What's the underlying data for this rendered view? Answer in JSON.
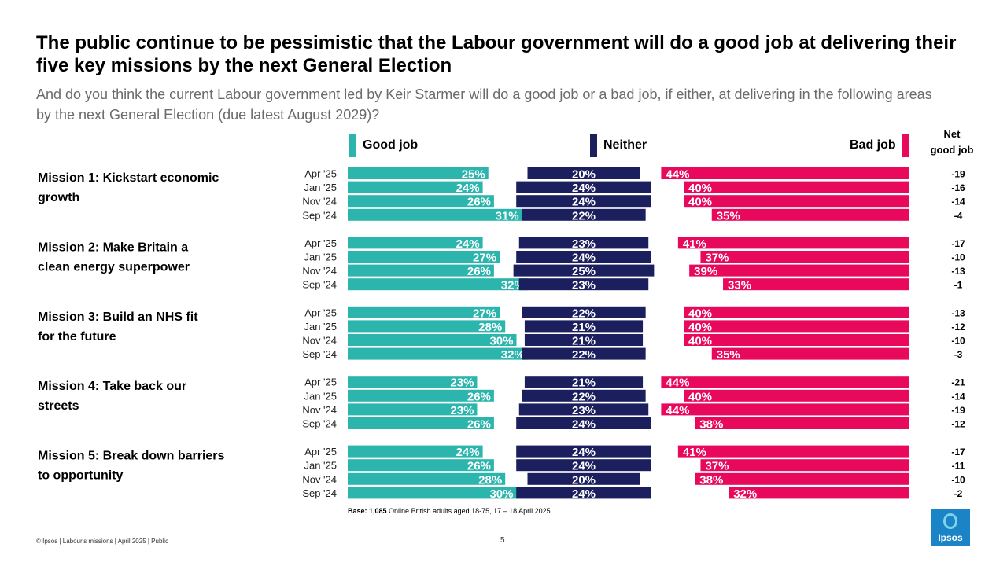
{
  "header": {
    "title": "The public continue to be pessimistic that the Labour government will do a good job at delivering their five key missions by the next General Election",
    "subtitle": "And do you think the current Labour government led by Keir Starmer will do a good job or a bad job, if either, at delivering in the following areas by the next General Election (due latest August 2029)?"
  },
  "legend": {
    "good": "Good job",
    "neither": "Neither",
    "bad": "Bad job",
    "net_line1": "Net",
    "net_line2": "good job"
  },
  "colors": {
    "good": "#2bb5ad",
    "neither": "#1c1f5e",
    "bad": "#e8085c"
  },
  "chart_data": {
    "type": "bar",
    "layout": "diverging-stacked-horizontal",
    "series_names": [
      "Good job",
      "Neither",
      "Bad job"
    ],
    "periods": [
      "Apr '25",
      "Jan '25",
      "Nov '24",
      "Sep '24"
    ],
    "missions": [
      {
        "label": "Mission 1: Kickstart economic growth",
        "rows": [
          {
            "period": "Apr '25",
            "good": 25,
            "neither": 20,
            "bad": 44,
            "net": -19,
            "good_label": "25%",
            "neither_label": "20%",
            "bad_label": "44%",
            "net_label": "-19"
          },
          {
            "period": "Jan '25",
            "good": 24,
            "neither": 24,
            "bad": 40,
            "net": -16,
            "good_label": "24%",
            "neither_label": "24%",
            "bad_label": "40%",
            "net_label": "-16"
          },
          {
            "period": "Nov '24",
            "good": 26,
            "neither": 24,
            "bad": 40,
            "net": -14,
            "good_label": "26%",
            "neither_label": "24%",
            "bad_label": "40%",
            "net_label": "-14"
          },
          {
            "period": "Sep '24",
            "good": 31,
            "neither": 22,
            "bad": 35,
            "net": -4,
            "good_label": "31%",
            "neither_label": "22%",
            "bad_label": "35%",
            "net_label": "-4"
          }
        ]
      },
      {
        "label": "Mission 2: Make Britain a clean energy superpower",
        "rows": [
          {
            "period": "Apr '25",
            "good": 24,
            "neither": 23,
            "bad": 41,
            "net": -17,
            "good_label": "24%",
            "neither_label": "23%",
            "bad_label": "41%",
            "net_label": "-17"
          },
          {
            "period": "Jan '25",
            "good": 27,
            "neither": 24,
            "bad": 37,
            "net": -10,
            "good_label": "27%",
            "neither_label": "24%",
            "bad_label": "37%",
            "net_label": "-10"
          },
          {
            "period": "Nov '24",
            "good": 26,
            "neither": 25,
            "bad": 39,
            "net": -13,
            "good_label": "26%",
            "neither_label": "25%",
            "bad_label": "39%",
            "net_label": "-13"
          },
          {
            "period": "Sep '24",
            "good": 32,
            "neither": 23,
            "bad": 33,
            "net": -1,
            "good_label": "32%",
            "neither_label": "23%",
            "bad_label": "33%",
            "net_label": "-1"
          }
        ]
      },
      {
        "label": "Mission 3: Build an NHS fit for the future",
        "rows": [
          {
            "period": "Apr '25",
            "good": 27,
            "neither": 22,
            "bad": 40,
            "net": -13,
            "good_label": "27%",
            "neither_label": "22%",
            "bad_label": "40%",
            "net_label": "-13"
          },
          {
            "period": "Jan '25",
            "good": 28,
            "neither": 21,
            "bad": 40,
            "net": -12,
            "good_label": "28%",
            "neither_label": "21%",
            "bad_label": "40%",
            "net_label": "-12"
          },
          {
            "period": "Nov '24",
            "good": 30,
            "neither": 21,
            "bad": 40,
            "net": -10,
            "good_label": "30%",
            "neither_label": "21%",
            "bad_label": "40%",
            "net_label": "-10"
          },
          {
            "period": "Sep '24",
            "good": 32,
            "neither": 22,
            "bad": 35,
            "net": -3,
            "good_label": "32%",
            "neither_label": "22%",
            "bad_label": "35%",
            "net_label": "-3"
          }
        ]
      },
      {
        "label": "Mission 4: Take back our streets",
        "rows": [
          {
            "period": "Apr '25",
            "good": 23,
            "neither": 21,
            "bad": 44,
            "net": -21,
            "good_label": "23%",
            "neither_label": "21%",
            "bad_label": "44%",
            "net_label": "-21"
          },
          {
            "period": "Jan '25",
            "good": 26,
            "neither": 22,
            "bad": 40,
            "net": -14,
            "good_label": "26%",
            "neither_label": "22%",
            "bad_label": "40%",
            "net_label": "-14"
          },
          {
            "period": "Nov '24",
            "good": 23,
            "neither": 23,
            "bad": 44,
            "net": -19,
            "good_label": "23%",
            "neither_label": "23%",
            "bad_label": "44%",
            "net_label": "-19"
          },
          {
            "period": "Sep '24",
            "good": 26,
            "neither": 24,
            "bad": 38,
            "net": -12,
            "good_label": "26%",
            "neither_label": "24%",
            "bad_label": "38%",
            "net_label": "-12"
          }
        ]
      },
      {
        "label": "Mission 5: Break down barriers to opportunity",
        "rows": [
          {
            "period": "Apr '25",
            "good": 24,
            "neither": 24,
            "bad": 41,
            "net": -17,
            "good_label": "24%",
            "neither_label": "24%",
            "bad_label": "41%",
            "net_label": "-17"
          },
          {
            "period": "Jan '25",
            "good": 26,
            "neither": 24,
            "bad": 37,
            "net": -11,
            "good_label": "26%",
            "neither_label": "24%",
            "bad_label": "37%",
            "net_label": "-11"
          },
          {
            "period": "Nov '24",
            "good": 28,
            "neither": 20,
            "bad": 38,
            "net": -10,
            "good_label": "28%",
            "neither_label": "20%",
            "bad_label": "38%",
            "net_label": "-10"
          },
          {
            "period": "Sep '24",
            "good": 30,
            "neither": 24,
            "bad": 32,
            "net": -2,
            "good_label": "30%",
            "neither_label": "24%",
            "bad_label": "32%",
            "net_label": "-2"
          }
        ]
      }
    ]
  },
  "notes": {
    "base_bold": "Base: 1,085",
    "base_rest": " Online British adults aged 18-75, 17 – 18 April 2025"
  },
  "footer": {
    "copyright": "© Ipsos | Labour's missions | April 2025 | Public",
    "page": "5",
    "logo": "Ipsos"
  }
}
